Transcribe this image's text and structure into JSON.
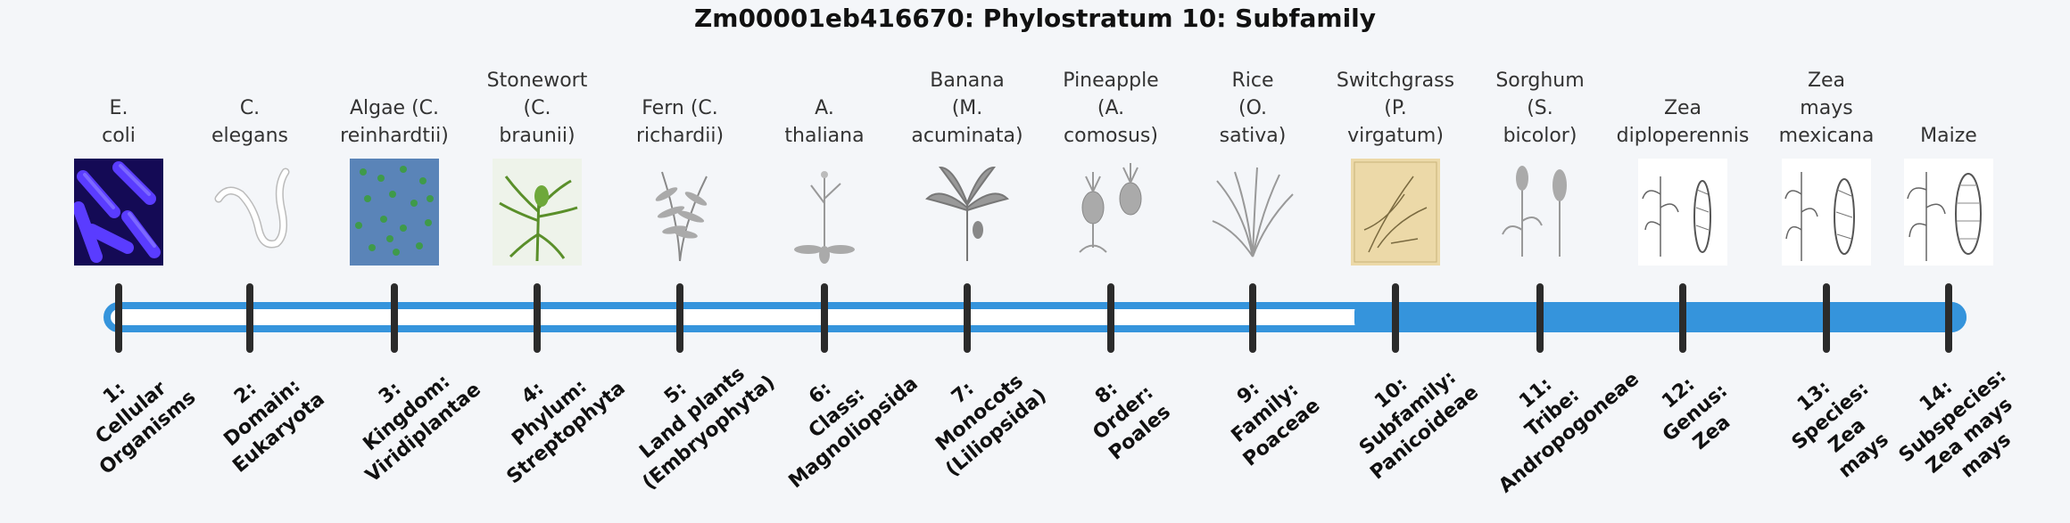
{
  "title": "Zm00001eb416670: Phylostratum 10: Subfamily",
  "colors": {
    "accent": "#3594dc",
    "tick": "#2b2b2b",
    "background": "#f4f6f9"
  },
  "current_stratum": 10,
  "organisms": [
    {
      "label": "E.\ncoli",
      "icon": "bacteria-icon"
    },
    {
      "label": "C.\nelegans",
      "icon": "worm-icon"
    },
    {
      "label": "Algae (C.\nreinhardtii)",
      "icon": "algae-icon"
    },
    {
      "label": "Stonewort\n(C.\nbraunii)",
      "icon": "stonewort-icon"
    },
    {
      "label": "Fern (C.\nrichardii)",
      "icon": "fern-icon"
    },
    {
      "label": "A.\nthaliana",
      "icon": "arabidopsis-icon"
    },
    {
      "label": "Banana\n(M.\nacuminata)",
      "icon": "banana-icon"
    },
    {
      "label": "Pineapple\n(A.\ncomosus)",
      "icon": "pineapple-icon"
    },
    {
      "label": "Rice\n(O.\nsativa)",
      "icon": "rice-icon"
    },
    {
      "label": "Switchgrass\n(P.\nvirgatum)",
      "icon": "switchgrass-icon"
    },
    {
      "label": "Sorghum\n(S.\nbicolor)",
      "icon": "sorghum-icon"
    },
    {
      "label": "Zea\ndiploperennis",
      "icon": "zea-diploperennis-icon"
    },
    {
      "label": "Zea\nmays\nmexicana",
      "icon": "zea-mexicana-icon"
    },
    {
      "label": "Maize",
      "icon": "maize-icon"
    }
  ],
  "ranks": [
    "1:\nCellular\nOrganisms",
    "2:\nDomain:\nEukaryota",
    "3:\nKingdom:\nViridiplantae",
    "4:\nPhylum:\nStreptophyta",
    "5:\nLand plants\n(Embryophyta)",
    "6:\nClass:\nMagnoliopsida",
    "7:\nMonocots\n(Liliopsida)",
    "8:\nOrder:\nPoales",
    "9:\nFamily:\nPoaceae",
    "10:\nSubfamily:\nPanicoideae",
    "11:\nTribe:\nAndropogoneae",
    "12:\nGenus:\nZea",
    "13:\nSpecies:\nZea\nmays",
    "14:\nSubspecies:\nZea mays\nmays"
  ]
}
